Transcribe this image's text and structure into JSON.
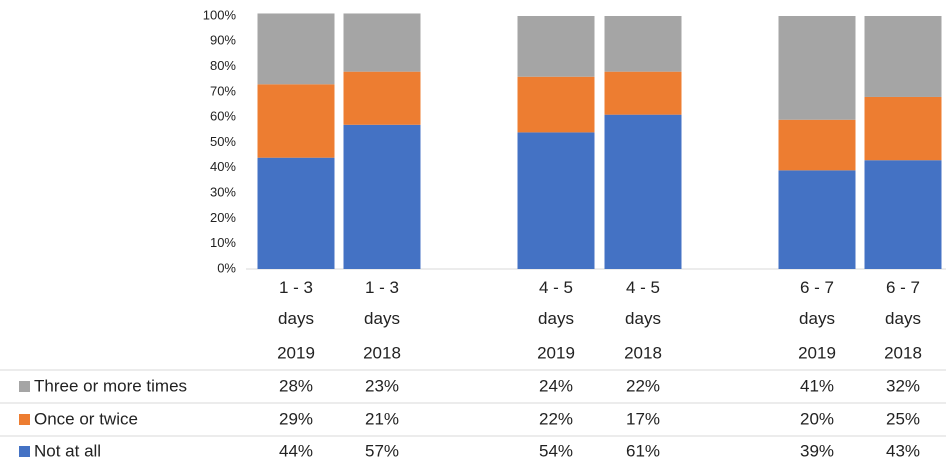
{
  "chart_data": {
    "type": "stacked_bar",
    "categories": [
      "1 - 3 days",
      "1 - 3 days",
      "4 - 5 days",
      "4 - 5 days",
      "6 - 7 days",
      "6 - 7 days"
    ],
    "years": [
      "2019",
      "2018",
      "2019",
      "2018",
      "2019",
      "2018"
    ],
    "series": [
      {
        "name": "Not at all",
        "color": "#4472c4",
        "values": [
          44,
          57,
          54,
          61,
          39,
          43
        ],
        "value_labels": [
          "44%",
          "57%",
          "54%",
          "61%",
          "39%",
          "43%"
        ]
      },
      {
        "name": "Once or twice",
        "color": "#ed7d31",
        "values": [
          29,
          21,
          22,
          17,
          20,
          25
        ],
        "value_labels": [
          "29%",
          "21%",
          "22%",
          "17%",
          "20%",
          "25%"
        ]
      },
      {
        "name": "Three or more times",
        "color": "#a5a5a5",
        "values": [
          28,
          23,
          24,
          22,
          41,
          32
        ],
        "value_labels": [
          "28%",
          "23%",
          "24%",
          "22%",
          "41%",
          "32%"
        ]
      }
    ],
    "ylim": [
      0,
      100
    ],
    "yticks": [
      {
        "value": 0,
        "label": "0%"
      },
      {
        "value": 10,
        "label": "10%"
      },
      {
        "value": 20,
        "label": "20%"
      },
      {
        "value": 30,
        "label": "30%"
      },
      {
        "value": 40,
        "label": "40%"
      },
      {
        "value": 50,
        "label": "50%"
      },
      {
        "value": 60,
        "label": "60%"
      },
      {
        "value": 70,
        "label": "70%"
      },
      {
        "value": 80,
        "label": "80%"
      },
      {
        "value": 90,
        "label": "90%"
      },
      {
        "value": 100,
        "label": "100%"
      }
    ]
  }
}
